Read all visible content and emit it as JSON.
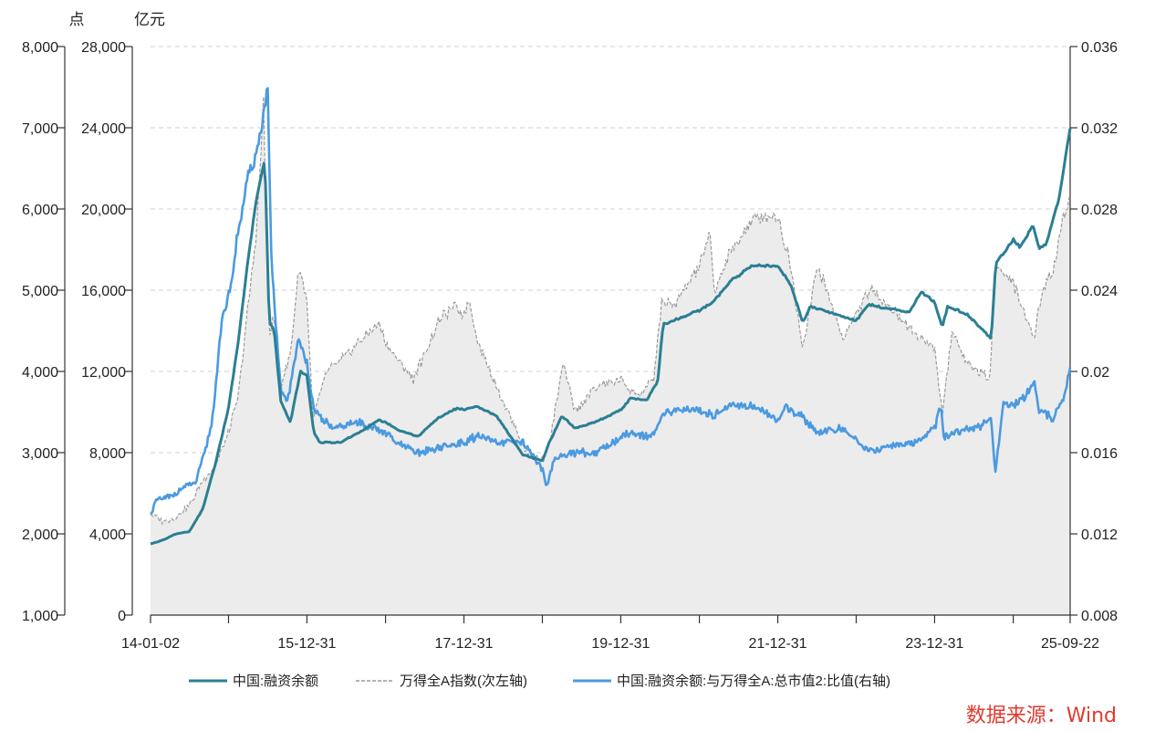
{
  "chart_data": {
    "type": "line",
    "y_units": {
      "outer_left": "点",
      "inner_left": "亿元"
    },
    "axes": {
      "outer_left": {
        "range": [
          1000,
          8000
        ],
        "ticks": [
          "1,000",
          "2,000",
          "3,000",
          "4,000",
          "5,000",
          "6,000",
          "7,000",
          "8,000"
        ]
      },
      "inner_left": {
        "range": [
          0,
          28000
        ],
        "ticks": [
          "0",
          "4,000",
          "8,000",
          "12,000",
          "16,000",
          "20,000",
          "24,000",
          "28,000"
        ]
      },
      "right": {
        "range": [
          0.008,
          0.036
        ],
        "ticks": [
          "0.008",
          "0.012",
          "0.016",
          "0.02",
          "0.024",
          "0.028",
          "0.032",
          "0.036"
        ]
      },
      "x": {
        "range": [
          "2014-01-02",
          "2025-09-22"
        ],
        "tick_dates": [
          "2014-01-02",
          "2014-12-31",
          "2015-12-31",
          "2016-12-31",
          "2017-12-31",
          "2018-12-31",
          "2019-12-31",
          "2020-12-31",
          "2021-12-31",
          "2022-12-31",
          "2023-12-31",
          "2024-12-31",
          "2025-09-22"
        ],
        "tick_labels": [
          "14-01-02",
          "",
          "15-12-31",
          "",
          "17-12-31",
          "",
          "19-12-31",
          "",
          "21-12-31",
          "",
          "23-12-31",
          "",
          "25-09-22"
        ]
      }
    },
    "grid": "horizontal-dashed",
    "legend_position": "bottom",
    "series": [
      {
        "name": "中国:融资余额",
        "axis": "inner_left",
        "color": "#2b7f93",
        "style": "solid",
        "points": [
          [
            "2014-01-02",
            3500
          ],
          [
            "2014-03-01",
            3700
          ],
          [
            "2014-05-01",
            4000
          ],
          [
            "2014-07-01",
            4100
          ],
          [
            "2014-09-01",
            5200
          ],
          [
            "2014-11-01",
            7500
          ],
          [
            "2014-12-31",
            10200
          ],
          [
            "2015-02-15",
            13500
          ],
          [
            "2015-04-01",
            17500
          ],
          [
            "2015-05-10",
            20500
          ],
          [
            "2015-06-18",
            22500
          ],
          [
            "2015-07-08",
            14500
          ],
          [
            "2015-08-01",
            14000
          ],
          [
            "2015-09-01",
            10500
          ],
          [
            "2015-10-15",
            9500
          ],
          [
            "2015-12-01",
            12000
          ],
          [
            "2015-12-31",
            11800
          ],
          [
            "2016-02-01",
            9000
          ],
          [
            "2016-03-01",
            8500
          ],
          [
            "2016-06-01",
            8500
          ],
          [
            "2016-09-01",
            9000
          ],
          [
            "2016-11-30",
            9600
          ],
          [
            "2016-12-31",
            9500
          ],
          [
            "2017-03-01",
            9100
          ],
          [
            "2017-06-01",
            8800
          ],
          [
            "2017-09-01",
            9700
          ],
          [
            "2017-11-30",
            10200
          ],
          [
            "2017-12-31",
            10100
          ],
          [
            "2018-03-01",
            10300
          ],
          [
            "2018-06-01",
            9800
          ],
          [
            "2018-10-01",
            7900
          ],
          [
            "2018-12-31",
            7600
          ],
          [
            "2019-02-01",
            8500
          ],
          [
            "2019-04-01",
            9800
          ],
          [
            "2019-06-01",
            9200
          ],
          [
            "2019-09-01",
            9500
          ],
          [
            "2019-12-31",
            10100
          ],
          [
            "2020-02-15",
            10700
          ],
          [
            "2020-05-01",
            10600
          ],
          [
            "2020-06-20",
            11500
          ],
          [
            "2020-07-15",
            14300
          ],
          [
            "2020-09-01",
            14500
          ],
          [
            "2020-12-31",
            15000
          ],
          [
            "2021-03-01",
            15400
          ],
          [
            "2021-06-01",
            16500
          ],
          [
            "2021-09-01",
            17200
          ],
          [
            "2021-12-31",
            17200
          ],
          [
            "2022-03-01",
            16300
          ],
          [
            "2022-04-27",
            14400
          ],
          [
            "2022-06-01",
            15200
          ],
          [
            "2022-09-01",
            14900
          ],
          [
            "2022-12-31",
            14500
          ],
          [
            "2023-03-01",
            15300
          ],
          [
            "2023-06-01",
            15100
          ],
          [
            "2023-09-01",
            14900
          ],
          [
            "2023-11-01",
            15900
          ],
          [
            "2023-12-31",
            15400
          ],
          [
            "2024-02-05",
            14200
          ],
          [
            "2024-03-01",
            15200
          ],
          [
            "2024-06-01",
            14800
          ],
          [
            "2024-09-20",
            13600
          ],
          [
            "2024-10-10",
            17300
          ],
          [
            "2024-12-31",
            18500
          ],
          [
            "2025-02-01",
            18100
          ],
          [
            "2025-04-01",
            19200
          ],
          [
            "2025-05-01",
            18100
          ],
          [
            "2025-06-01",
            18200
          ],
          [
            "2025-08-01",
            20500
          ],
          [
            "2025-09-22",
            24000
          ]
        ]
      },
      {
        "name": "万得全A指数(次左轴)",
        "axis": "outer_left",
        "color": "#9a9a9a",
        "style": "dashed",
        "fill": "#ececec",
        "points": [
          [
            "2014-01-02",
            2250
          ],
          [
            "2014-03-01",
            2150
          ],
          [
            "2014-05-01",
            2200
          ],
          [
            "2014-07-01",
            2350
          ],
          [
            "2014-09-01",
            2650
          ],
          [
            "2014-11-01",
            2850
          ],
          [
            "2014-12-31",
            3250
          ],
          [
            "2015-02-15",
            3700
          ],
          [
            "2015-04-01",
            4800
          ],
          [
            "2015-05-10",
            5700
          ],
          [
            "2015-06-12",
            7300
          ],
          [
            "2015-07-08",
            4400
          ],
          [
            "2015-08-01",
            4700
          ],
          [
            "2015-08-26",
            3800
          ],
          [
            "2015-10-15",
            4200
          ],
          [
            "2015-11-25",
            5300
          ],
          [
            "2015-12-31",
            4900
          ],
          [
            "2016-01-28",
            3400
          ],
          [
            "2016-04-01",
            4000
          ],
          [
            "2016-07-01",
            4200
          ],
          [
            "2016-11-30",
            4600
          ],
          [
            "2016-12-31",
            4350
          ],
          [
            "2017-05-10",
            3900
          ],
          [
            "2017-09-01",
            4600
          ],
          [
            "2017-11-15",
            4800
          ],
          [
            "2017-12-31",
            4700
          ],
          [
            "2018-01-24",
            4900
          ],
          [
            "2018-03-01",
            4400
          ],
          [
            "2018-06-20",
            3700
          ],
          [
            "2018-10-18",
            3000
          ],
          [
            "2018-12-31",
            2900
          ],
          [
            "2019-02-01",
            3100
          ],
          [
            "2019-04-08",
            4100
          ],
          [
            "2019-06-01",
            3500
          ],
          [
            "2019-09-01",
            3800
          ],
          [
            "2019-12-31",
            3900
          ],
          [
            "2020-02-03",
            3800
          ],
          [
            "2020-03-23",
            3700
          ],
          [
            "2020-06-01",
            3900
          ],
          [
            "2020-07-10",
            4900
          ],
          [
            "2020-09-01",
            4800
          ],
          [
            "2020-12-31",
            5300
          ],
          [
            "2021-02-18",
            5700
          ],
          [
            "2021-03-09",
            5000
          ],
          [
            "2021-06-01",
            5500
          ],
          [
            "2021-09-14",
            5900
          ],
          [
            "2021-12-31",
            5900
          ],
          [
            "2022-03-01",
            5300
          ],
          [
            "2022-04-26",
            4300
          ],
          [
            "2022-07-05",
            5300
          ],
          [
            "2022-10-31",
            4400
          ],
          [
            "2022-12-31",
            4700
          ],
          [
            "2023-03-01",
            5000
          ],
          [
            "2023-05-01",
            4900
          ],
          [
            "2023-10-23",
            4400
          ],
          [
            "2023-12-31",
            4300
          ],
          [
            "2024-02-05",
            3450
          ],
          [
            "2024-03-20",
            4500
          ],
          [
            "2024-06-01",
            4100
          ],
          [
            "2024-09-13",
            3900
          ],
          [
            "2024-10-08",
            5300
          ],
          [
            "2024-12-31",
            5100
          ],
          [
            "2025-04-07",
            4400
          ],
          [
            "2025-05-15",
            5050
          ],
          [
            "2025-07-01",
            5200
          ],
          [
            "2025-08-20",
            5900
          ],
          [
            "2025-09-22",
            6150
          ]
        ]
      },
      {
        "name": "中国:融资余额:与万得全A:总市值2:比值(右轴)",
        "axis": "right",
        "color": "#4b9ae0",
        "style": "solid",
        "points": [
          [
            "2014-01-02",
            0.013
          ],
          [
            "2014-02-01",
            0.0137
          ],
          [
            "2014-04-01",
            0.0138
          ],
          [
            "2014-06-01",
            0.0143
          ],
          [
            "2014-08-01",
            0.0145
          ],
          [
            "2014-09-15",
            0.0162
          ],
          [
            "2014-10-15",
            0.0175
          ],
          [
            "2014-12-01",
            0.0225
          ],
          [
            "2015-01-15",
            0.0245
          ],
          [
            "2015-02-15",
            0.027
          ],
          [
            "2015-04-01",
            0.0295
          ],
          [
            "2015-05-15",
            0.031
          ],
          [
            "2015-06-15",
            0.0328
          ],
          [
            "2015-07-01",
            0.034
          ],
          [
            "2015-07-20",
            0.025
          ],
          [
            "2015-09-01",
            0.019
          ],
          [
            "2015-10-01",
            0.0185
          ],
          [
            "2015-11-20",
            0.0215
          ],
          [
            "2015-12-31",
            0.0205
          ],
          [
            "2016-02-01",
            0.018
          ],
          [
            "2016-05-01",
            0.0172
          ],
          [
            "2016-09-01",
            0.0175
          ],
          [
            "2016-12-31",
            0.017
          ],
          [
            "2017-03-01",
            0.0164
          ],
          [
            "2017-06-01",
            0.016
          ],
          [
            "2017-12-31",
            0.0165
          ],
          [
            "2018-03-01",
            0.0168
          ],
          [
            "2018-06-01",
            0.0165
          ],
          [
            "2018-10-01",
            0.0165
          ],
          [
            "2018-12-31",
            0.0152
          ],
          [
            "2019-01-20",
            0.0143
          ],
          [
            "2019-03-01",
            0.0158
          ],
          [
            "2019-06-01",
            0.016
          ],
          [
            "2019-09-01",
            0.016
          ],
          [
            "2019-12-31",
            0.0167
          ],
          [
            "2020-02-01",
            0.017
          ],
          [
            "2020-04-01",
            0.0169
          ],
          [
            "2020-06-01",
            0.0168
          ],
          [
            "2020-07-10",
            0.0178
          ],
          [
            "2020-09-01",
            0.0181
          ],
          [
            "2020-12-31",
            0.0181
          ],
          [
            "2021-03-01",
            0.0178
          ],
          [
            "2021-06-01",
            0.0184
          ],
          [
            "2021-09-01",
            0.0183
          ],
          [
            "2021-12-31",
            0.0176
          ],
          [
            "2022-02-01",
            0.0182
          ],
          [
            "2022-04-25",
            0.0178
          ],
          [
            "2022-07-01",
            0.017
          ],
          [
            "2022-10-31",
            0.0172
          ],
          [
            "2022-12-31",
            0.0166
          ],
          [
            "2023-03-01",
            0.0161
          ],
          [
            "2023-06-01",
            0.0163
          ],
          [
            "2023-10-01",
            0.0165
          ],
          [
            "2023-12-31",
            0.0172
          ],
          [
            "2024-01-31",
            0.0183
          ],
          [
            "2024-02-10",
            0.0168
          ],
          [
            "2024-04-01",
            0.017
          ],
          [
            "2024-07-01",
            0.0172
          ],
          [
            "2024-09-20",
            0.0176
          ],
          [
            "2024-10-08",
            0.0149
          ],
          [
            "2024-11-15",
            0.0185
          ],
          [
            "2024-12-31",
            0.0183
          ],
          [
            "2025-03-01",
            0.0188
          ],
          [
            "2025-04-07",
            0.0196
          ],
          [
            "2025-05-01",
            0.018
          ],
          [
            "2025-07-01",
            0.0177
          ],
          [
            "2025-08-15",
            0.0184
          ],
          [
            "2025-09-22",
            0.02
          ]
        ]
      }
    ]
  },
  "source_note": "数据来源：Wind"
}
